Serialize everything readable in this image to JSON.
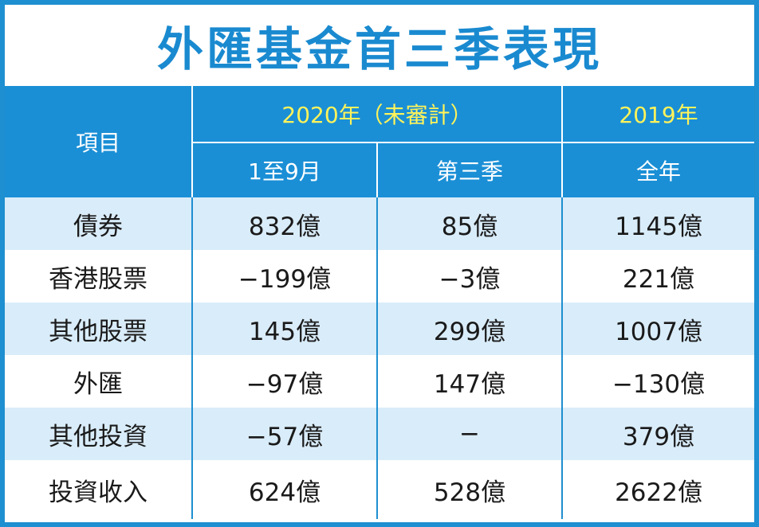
{
  "title": "外匯基金首三季表現",
  "header": {
    "item_label": "項目",
    "group_2020": "2020年（未審計）",
    "group_2019": "2019年",
    "sub_2020_a": "1至9月",
    "sub_2020_b": "第三季",
    "sub_2019": "全年"
  },
  "rows": [
    {
      "item": "債券",
      "jan_sep_2020": "832億",
      "q3_2020": "85億",
      "full_2019": "1145億"
    },
    {
      "item": "香港股票",
      "jan_sep_2020": "−199億",
      "q3_2020": "−3億",
      "full_2019": "221億"
    },
    {
      "item": "其他股票",
      "jan_sep_2020": "145億",
      "q3_2020": "299億",
      "full_2019": "1007億"
    },
    {
      "item": "外匯",
      "jan_sep_2020": "−97億",
      "q3_2020": "147億",
      "full_2019": "−130億"
    },
    {
      "item": "其他投資",
      "jan_sep_2020": "−57億",
      "q3_2020": "−",
      "full_2019": "379億"
    },
    {
      "item": "投資收入",
      "jan_sep_2020": "624億",
      "q3_2020": "528億",
      "full_2019": "2622億"
    }
  ],
  "colors": {
    "accent": "#1a8fd6",
    "title": "#1a8ad0",
    "year_text": "#fff35a",
    "row_stripe": "#d9ecf9"
  }
}
